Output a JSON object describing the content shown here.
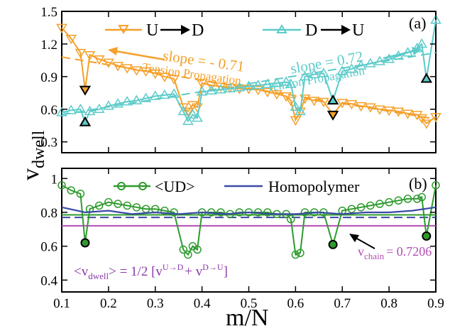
{
  "chart_data": [
    {
      "panel_label": "(a)",
      "type": "line",
      "xlim": [
        0.1,
        0.9
      ],
      "ylim": [
        0.2,
        1.5
      ],
      "xticks": [
        0.1,
        0.2,
        0.3,
        0.4,
        0.5,
        0.6,
        0.7,
        0.8,
        0.9
      ],
      "yticks": [
        0.3,
        0.6,
        0.9,
        1.2,
        1.5
      ],
      "ytick_labels": [
        "0.3",
        "0.6",
        "0.9",
        "1.2",
        "1.5"
      ],
      "legend": [
        {
          "from": "U",
          "to": "D",
          "color": "#f5a02a",
          "marker": "triangle-down"
        },
        {
          "from": "D",
          "to": "U",
          "color": "#5ccbca",
          "marker": "triangle-up"
        }
      ],
      "annotations": [
        {
          "text": "slope = - 0.71",
          "sub": "Tension Propagation",
          "color": "#f5a02a"
        },
        {
          "text": "slope = 0.72",
          "sub": "Tension Propagation",
          "color": "#5ccbca"
        }
      ],
      "series": [
        {
          "name": "U→D",
          "color": "#f5a02a",
          "marker": "triangle-down",
          "x": [
            0.1,
            0.12,
            0.14,
            0.15,
            0.16,
            0.18,
            0.2,
            0.22,
            0.24,
            0.26,
            0.28,
            0.3,
            0.32,
            0.34,
            0.36,
            0.37,
            0.38,
            0.39,
            0.4,
            0.42,
            0.44,
            0.46,
            0.48,
            0.5,
            0.52,
            0.54,
            0.56,
            0.58,
            0.59,
            0.6,
            0.61,
            0.62,
            0.64,
            0.66,
            0.68,
            0.7,
            0.72,
            0.74,
            0.76,
            0.78,
            0.8,
            0.82,
            0.84,
            0.86,
            0.87,
            0.88,
            0.9
          ],
          "values": [
            1.35,
            1.25,
            1.12,
            0.78,
            1.1,
            1.06,
            1.03,
            1.0,
            0.98,
            0.96,
            0.95,
            0.93,
            0.9,
            0.88,
            0.62,
            0.58,
            0.64,
            0.62,
            0.84,
            0.82,
            0.81,
            0.8,
            0.79,
            0.79,
            0.78,
            0.76,
            0.74,
            0.72,
            0.68,
            0.5,
            0.58,
            0.7,
            0.68,
            0.67,
            0.55,
            0.66,
            0.65,
            0.63,
            0.62,
            0.6,
            0.59,
            0.58,
            0.56,
            0.55,
            0.52,
            0.47,
            0.53
          ]
        },
        {
          "name": "D→U",
          "color": "#5ccbca",
          "marker": "triangle-up",
          "x": [
            0.1,
            0.12,
            0.14,
            0.15,
            0.16,
            0.18,
            0.2,
            0.22,
            0.24,
            0.26,
            0.28,
            0.3,
            0.32,
            0.34,
            0.36,
            0.37,
            0.38,
            0.39,
            0.4,
            0.42,
            0.44,
            0.46,
            0.48,
            0.5,
            0.52,
            0.54,
            0.56,
            0.58,
            0.59,
            0.6,
            0.61,
            0.62,
            0.64,
            0.66,
            0.68,
            0.7,
            0.72,
            0.74,
            0.76,
            0.78,
            0.8,
            0.82,
            0.84,
            0.86,
            0.87,
            0.88,
            0.9
          ],
          "values": [
            0.57,
            0.59,
            0.6,
            0.48,
            0.58,
            0.6,
            0.63,
            0.65,
            0.67,
            0.68,
            0.7,
            0.72,
            0.73,
            0.74,
            0.58,
            0.49,
            0.55,
            0.52,
            0.76,
            0.77,
            0.78,
            0.79,
            0.8,
            0.81,
            0.82,
            0.83,
            0.84,
            0.85,
            0.83,
            0.62,
            0.58,
            0.9,
            0.92,
            0.93,
            0.68,
            0.95,
            0.97,
            1.0,
            1.02,
            1.04,
            1.06,
            1.09,
            1.12,
            1.16,
            1.2,
            0.88,
            1.42
          ]
        }
      ],
      "fits": [
        {
          "series": "U→D",
          "slope": -0.71,
          "x": [
            0.1,
            0.9
          ],
          "values": [
            1.08,
            0.51
          ],
          "style": "dashed"
        },
        {
          "series": "D→U",
          "slope": 0.72,
          "x": [
            0.1,
            0.9
          ],
          "values": [
            0.55,
            1.12
          ],
          "style": "dashed"
        }
      ]
    },
    {
      "panel_label": "(b)",
      "type": "line",
      "xlim": [
        0.1,
        0.9
      ],
      "ylim": [
        0.33,
        1.06
      ],
      "xticks": [
        0.1,
        0.2,
        0.3,
        0.4,
        0.5,
        0.6,
        0.7,
        0.8,
        0.9
      ],
      "yticks": [
        0.4,
        0.6,
        0.8,
        1.0
      ],
      "ytick_labels": [
        "0.4",
        "0.6",
        "0.8",
        "1"
      ],
      "xlabel": "m/N",
      "legend": [
        {
          "label": "<UD>",
          "color": "#2e9a2e",
          "marker": "circle"
        },
        {
          "label": "Homopolymer",
          "color": "#3b4ba6",
          "marker": "none"
        }
      ],
      "series": [
        {
          "name": "<UD>",
          "color": "#2e9a2e",
          "marker": "circle",
          "x": [
            0.1,
            0.12,
            0.14,
            0.15,
            0.16,
            0.18,
            0.2,
            0.22,
            0.24,
            0.26,
            0.28,
            0.3,
            0.32,
            0.34,
            0.36,
            0.37,
            0.38,
            0.39,
            0.4,
            0.42,
            0.44,
            0.46,
            0.48,
            0.5,
            0.52,
            0.54,
            0.56,
            0.58,
            0.59,
            0.6,
            0.61,
            0.62,
            0.64,
            0.66,
            0.68,
            0.7,
            0.72,
            0.74,
            0.76,
            0.78,
            0.8,
            0.82,
            0.84,
            0.86,
            0.87,
            0.88,
            0.9
          ],
          "values": [
            0.96,
            0.93,
            0.91,
            0.62,
            0.82,
            0.84,
            0.86,
            0.85,
            0.84,
            0.83,
            0.82,
            0.82,
            0.81,
            0.8,
            0.58,
            0.55,
            0.6,
            0.58,
            0.8,
            0.8,
            0.8,
            0.79,
            0.8,
            0.8,
            0.8,
            0.8,
            0.79,
            0.79,
            0.76,
            0.55,
            0.56,
            0.8,
            0.8,
            0.8,
            0.61,
            0.81,
            0.82,
            0.83,
            0.84,
            0.85,
            0.86,
            0.87,
            0.88,
            0.88,
            0.89,
            0.66,
            0.96
          ]
        },
        {
          "name": "Homopolymer",
          "color": "#3b4ba6",
          "marker": "none",
          "x": [
            0.1,
            0.15,
            0.2,
            0.25,
            0.3,
            0.35,
            0.4,
            0.45,
            0.5,
            0.55,
            0.6,
            0.65,
            0.7,
            0.75,
            0.8,
            0.85,
            0.9
          ],
          "values": [
            0.83,
            0.8,
            0.81,
            0.79,
            0.8,
            0.79,
            0.8,
            0.79,
            0.8,
            0.79,
            0.79,
            0.8,
            0.79,
            0.8,
            0.8,
            0.81,
            0.83
          ]
        }
      ],
      "reference_lines": [
        {
          "y": 0.785,
          "color": "#2e9a2e"
        },
        {
          "y": 0.77,
          "color": "#3b4ba6",
          "style": "dashed"
        },
        {
          "y": 0.7206,
          "color": "#b24db3"
        }
      ],
      "annotations": [
        {
          "text": "v",
          "sub": "chain",
          "value": "= 0.7206",
          "color": "#b24db3"
        },
        {
          "text": "<v",
          "sub": "dwell",
          "tail": "> = 1/2 [v",
          "sup1": "U→D",
          "plus": "+ v",
          "sup2": "D→U",
          "end": "]",
          "color": "#8a3aa8"
        }
      ]
    }
  ],
  "ylabel": "v",
  "ylabel_sub": "dwell"
}
